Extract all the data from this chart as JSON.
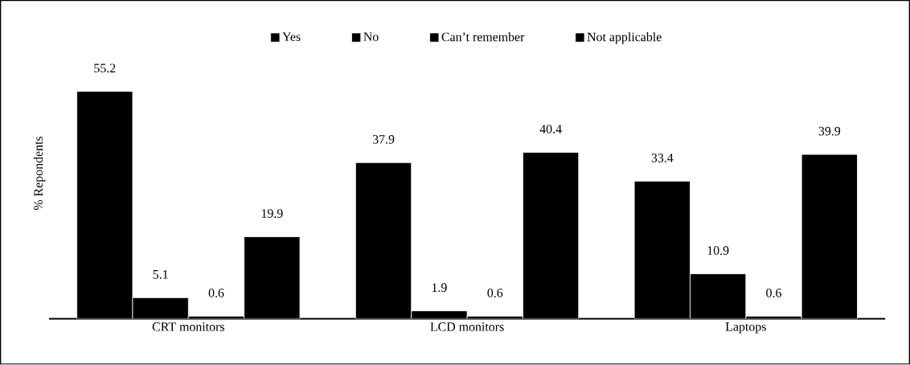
{
  "chart_data": {
    "type": "bar",
    "ylabel": "% Repondents",
    "categories": [
      "CRT monitors",
      "LCD monitors",
      "Laptops"
    ],
    "series": [
      {
        "name": "Yes",
        "color": "#000000",
        "values": [
          55.2,
          37.9,
          33.4
        ]
      },
      {
        "name": "No",
        "color": "#000000",
        "values": [
          5.1,
          1.9,
          10.9
        ]
      },
      {
        "name": "Can’t remember",
        "color": "#000000",
        "values": [
          0.6,
          0.6,
          0.6
        ]
      },
      {
        "name": "Not applicable",
        "color": "#000000",
        "values": [
          19.9,
          40.4,
          39.9
        ]
      }
    ],
    "data_labels": true,
    "legend": "top"
  }
}
